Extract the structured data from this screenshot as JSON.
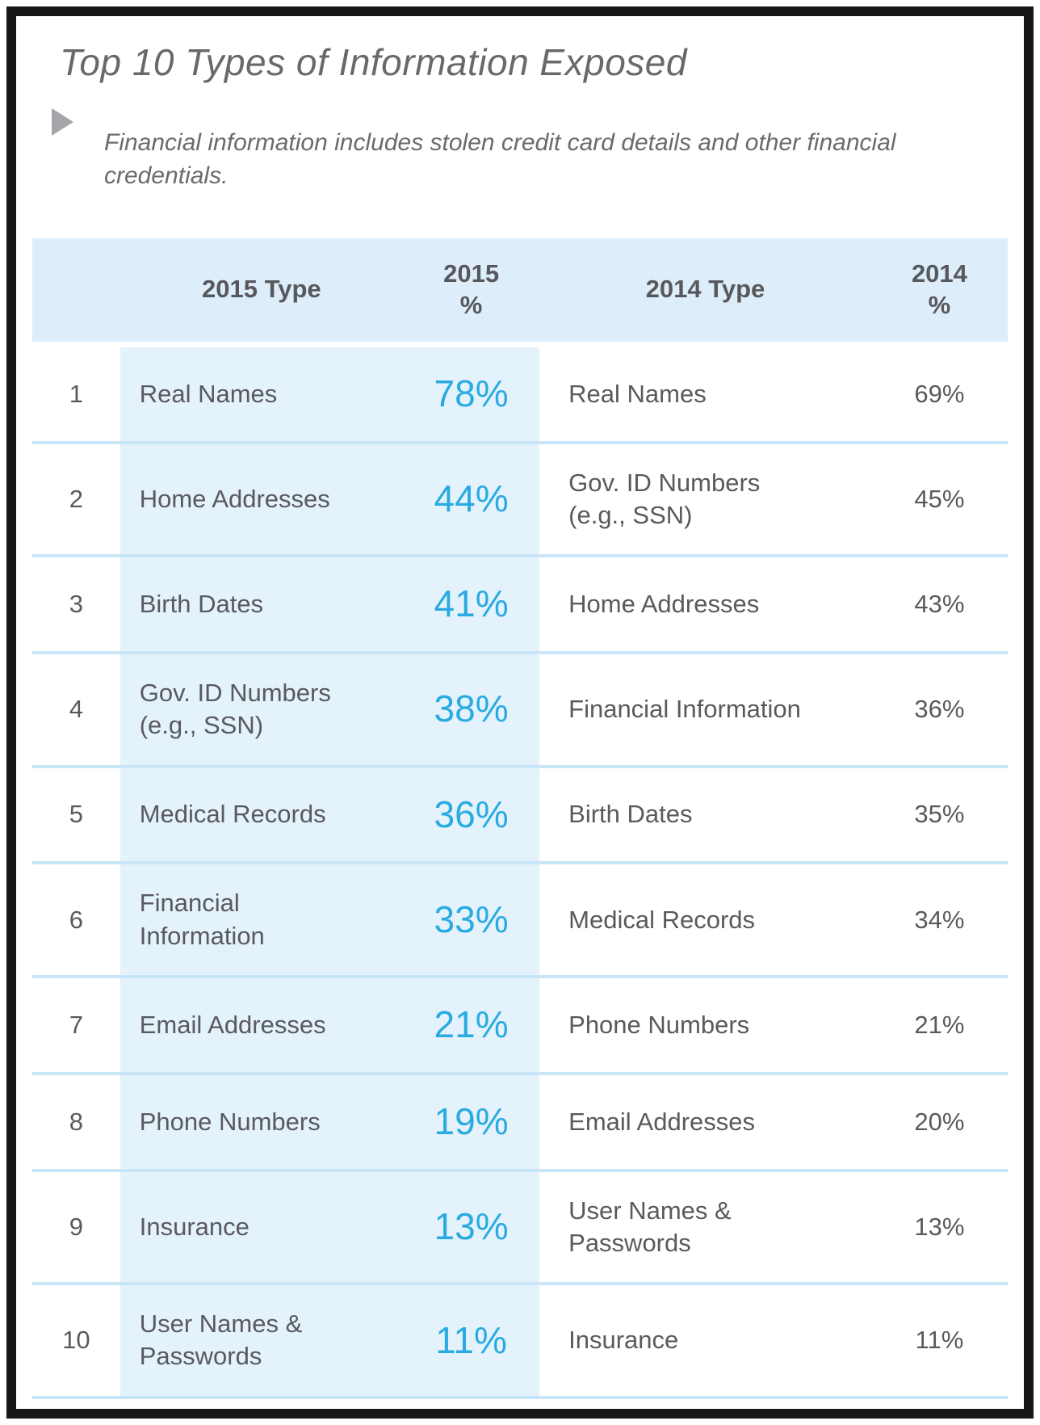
{
  "figure": {
    "title": "Top 10 Types of Information Exposed",
    "note": "Financial information includes stolen credit card details and other financial credentials."
  },
  "colors": {
    "accent_blue": "#29abe2",
    "header_bg": "#ddeefa",
    "band_bg": "#e4f2fc",
    "separator": "#c8e6f7",
    "text_gray": "#595a5d",
    "frame_border": "#161616"
  },
  "icons": {
    "bullet": "triangle-right-icon"
  },
  "table": {
    "headers": {
      "rank": "",
      "type_2015": "2015 Type",
      "pct_2015": "2015\n%",
      "type_2014": "2014 Type",
      "pct_2014": "2014\n%"
    },
    "rows": [
      {
        "rank": "1",
        "type_2015": "Real Names",
        "pct_2015": "78%",
        "type_2014": "Real Names",
        "pct_2014": "69%"
      },
      {
        "rank": "2",
        "type_2015": "Home Addresses",
        "pct_2015": "44%",
        "type_2014": "Gov. ID Numbers\n(e.g., SSN)",
        "pct_2014": "45%"
      },
      {
        "rank": "3",
        "type_2015": "Birth Dates",
        "pct_2015": "41%",
        "type_2014": "Home Addresses",
        "pct_2014": "43%"
      },
      {
        "rank": "4",
        "type_2015": "Gov. ID Numbers\n(e.g., SSN)",
        "pct_2015": "38%",
        "type_2014": "Financial Information",
        "pct_2014": "36%"
      },
      {
        "rank": "5",
        "type_2015": "Medical Records",
        "pct_2015": "36%",
        "type_2014": "Birth Dates",
        "pct_2014": "35%"
      },
      {
        "rank": "6",
        "type_2015": "Financial\nInformation",
        "pct_2015": "33%",
        "type_2014": "Medical Records",
        "pct_2014": "34%"
      },
      {
        "rank": "7",
        "type_2015": "Email Addresses",
        "pct_2015": "21%",
        "type_2014": "Phone Numbers",
        "pct_2014": "21%"
      },
      {
        "rank": "8",
        "type_2015": "Phone Numbers",
        "pct_2015": "19%",
        "type_2014": "Email Addresses",
        "pct_2014": "20%"
      },
      {
        "rank": "9",
        "type_2015": "Insurance",
        "pct_2015": "13%",
        "type_2014": "User Names &\nPasswords",
        "pct_2014": "13%"
      },
      {
        "rank": "10",
        "type_2015": "User Names &\nPasswords",
        "pct_2015": "11%",
        "type_2014": "Insurance",
        "pct_2014": "11%"
      }
    ]
  },
  "chart_data": {
    "type": "table",
    "title": "Top 10 Types of Information Exposed",
    "note": "Financial information includes stolen credit card details and other financial credentials.",
    "columns": [
      "Rank",
      "2015 Type",
      "2015 %",
      "2014 Type",
      "2014 %"
    ],
    "rows": [
      [
        1,
        "Real Names",
        78,
        "Real Names",
        69
      ],
      [
        2,
        "Home Addresses",
        44,
        "Gov. ID Numbers (e.g., SSN)",
        45
      ],
      [
        3,
        "Birth Dates",
        41,
        "Home Addresses",
        43
      ],
      [
        4,
        "Gov. ID Numbers (e.g., SSN)",
        38,
        "Financial Information",
        36
      ],
      [
        5,
        "Medical Records",
        36,
        "Birth Dates",
        35
      ],
      [
        6,
        "Financial Information",
        33,
        "Medical Records",
        34
      ],
      [
        7,
        "Email Addresses",
        21,
        "Phone Numbers",
        21
      ],
      [
        8,
        "Phone Numbers",
        19,
        "Email Addresses",
        20
      ],
      [
        9,
        "Insurance",
        13,
        "User Names & Passwords",
        13
      ],
      [
        10,
        "User Names & Passwords",
        11,
        "Insurance",
        11
      ]
    ],
    "series": [
      {
        "name": "2015 %",
        "categories": [
          "Real Names",
          "Home Addresses",
          "Birth Dates",
          "Gov. ID Numbers (e.g., SSN)",
          "Medical Records",
          "Financial Information",
          "Email Addresses",
          "Phone Numbers",
          "Insurance",
          "User Names & Passwords"
        ],
        "values": [
          78,
          44,
          41,
          38,
          36,
          33,
          21,
          19,
          13,
          11
        ]
      },
      {
        "name": "2014 %",
        "categories": [
          "Real Names",
          "Gov. ID Numbers (e.g., SSN)",
          "Home Addresses",
          "Financial Information",
          "Birth Dates",
          "Medical Records",
          "Phone Numbers",
          "Email Addresses",
          "User Names & Passwords",
          "Insurance"
        ],
        "values": [
          69,
          45,
          43,
          36,
          35,
          34,
          21,
          20,
          13,
          11
        ]
      }
    ]
  }
}
